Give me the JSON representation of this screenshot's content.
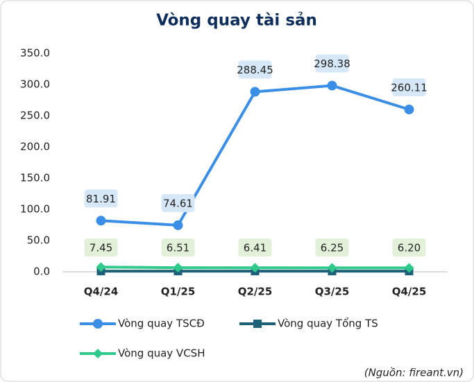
{
  "chart_data": {
    "type": "line",
    "title": "Vòng quay tài sản",
    "categories": [
      "Q4/24",
      "Q1/25",
      "Q2/25",
      "Q3/25",
      "Q4/25"
    ],
    "series": [
      {
        "name": "Vòng quay TSCĐ",
        "color": "#3a8ee6",
        "marker": "circle",
        "values": [
          81.91,
          74.61,
          288.45,
          298.38,
          260.11
        ],
        "label_bg": "#d6e8f8"
      },
      {
        "name": "Vòng quay Tổng TS",
        "color": "#1f6079",
        "marker": "square",
        "values": [
          1.0,
          1.0,
          1.0,
          1.0,
          1.0
        ]
      },
      {
        "name": "Vòng quay VCSH",
        "color": "#2fc98c",
        "marker": "diamond",
        "values": [
          7.45,
          6.51,
          6.41,
          6.25,
          6.2
        ],
        "value_labels": [
          "7.45",
          "6.51",
          "6.41",
          "6.25",
          "6.20"
        ],
        "label_bg": "#e2f0d9"
      }
    ],
    "ylim": [
      0,
      350
    ],
    "yticks": [
      {
        "value": 0,
        "label": "0.0"
      },
      {
        "value": 50,
        "label": "50.0"
      },
      {
        "value": 100,
        "label": "100.0"
      },
      {
        "value": 150,
        "label": "150.0"
      },
      {
        "value": 200,
        "label": "200.0"
      },
      {
        "value": 250,
        "label": "250.0"
      },
      {
        "value": 300,
        "label": "300.0"
      },
      {
        "value": 350,
        "label": "350.0"
      }
    ],
    "grid": false,
    "annotation": "(Nguồn: fireant.vn)"
  }
}
